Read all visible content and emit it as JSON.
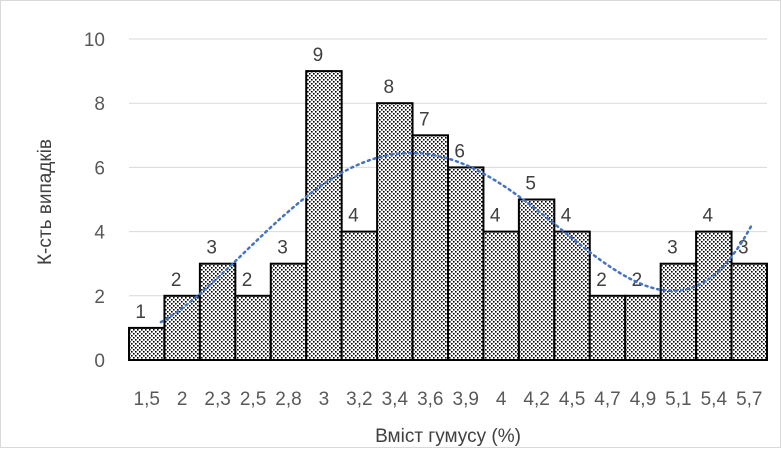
{
  "chart_data": {
    "type": "bar",
    "title": "",
    "xlabel": "Вміст гумусу (%)",
    "ylabel": "К-сть випадків",
    "ylim": [
      0,
      10
    ],
    "y_ticks": [
      0,
      2,
      4,
      6,
      8,
      10
    ],
    "x_tick_labels": [
      "1,5",
      "2",
      "2,3",
      "2,5",
      "2,8",
      "3",
      "3,2",
      "3,4",
      "3,6",
      "3,9",
      "4",
      "4,2",
      "4,5",
      "4,7",
      "4,9",
      "5,1",
      "5,4",
      "5,7"
    ],
    "categories": [
      "1,5",
      "2",
      "2,3",
      "2,5",
      "2,8",
      "3",
      "3,2",
      "3,4",
      "3,6",
      "3,9",
      "4",
      "4,2",
      "4,5",
      "4,7",
      "4,9",
      "5,1",
      "5,4",
      "5,7"
    ],
    "values": [
      1,
      2,
      3,
      2,
      3,
      9,
      4,
      8,
      7,
      6,
      4,
      5,
      4,
      2,
      2,
      3,
      4,
      3
    ],
    "grid": true,
    "legend": "none",
    "bar_fill": "dotted pattern",
    "trendline": {
      "style": "dotted",
      "color": "#4472c4"
    },
    "colors": {
      "bar_stroke": "#000000",
      "grid": "#d9d9d9",
      "text": "#595959"
    }
  }
}
